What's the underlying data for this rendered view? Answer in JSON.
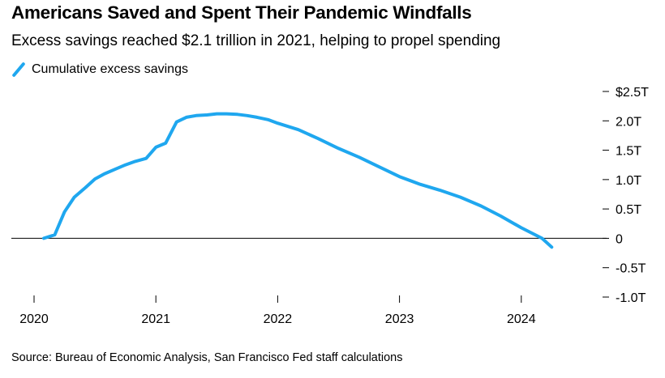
{
  "header": {
    "title": "Americans Saved and Spent Their Pandemic Windfalls",
    "subtitle": "Excess savings reached $2.1 trillion in 2021, helping to propel spending"
  },
  "legend": {
    "label": "Cumulative excess savings",
    "color": "#1fa7ef"
  },
  "footer": {
    "source": "Source: Bureau of Economic Analysis, San Francisco Fed staff calculations"
  },
  "chart_data": {
    "type": "line",
    "title": "Americans Saved and Spent Their Pandemic Windfalls",
    "subtitle": "Excess savings reached $2.1 trillion in 2021, helping to propel spending",
    "xlabel": "",
    "ylabel": "",
    "xlim": [
      2020.0,
      2024.5
    ],
    "ylim": [
      -1.0,
      2.5
    ],
    "x_ticks": [
      2020,
      2021,
      2022,
      2023,
      2024
    ],
    "x_tick_labels": [
      "2020",
      "2021",
      "2022",
      "2023",
      "2024"
    ],
    "y_ticks": [
      2.5,
      2.0,
      1.5,
      1.0,
      0.5,
      0,
      -0.5,
      -1.0
    ],
    "y_tick_labels": [
      "$2.5T",
      "2.0T",
      "1.5T",
      "1.0T",
      "0.5T",
      "0",
      "-0.5T",
      "-1.0T"
    ],
    "y_axis_side": "right",
    "zero_line": true,
    "grid": false,
    "legend_position": "top-left",
    "series": [
      {
        "name": "Cumulative excess savings",
        "color": "#1fa7ef",
        "x": [
          2020.08,
          2020.17,
          2020.25,
          2020.33,
          2020.42,
          2020.5,
          2020.58,
          2020.67,
          2020.75,
          2020.83,
          2020.92,
          2021.0,
          2021.08,
          2021.17,
          2021.25,
          2021.33,
          2021.42,
          2021.5,
          2021.58,
          2021.67,
          2021.75,
          2021.83,
          2021.92,
          2022.0,
          2022.17,
          2022.33,
          2022.5,
          2022.67,
          2022.83,
          2023.0,
          2023.17,
          2023.33,
          2023.5,
          2023.67,
          2023.83,
          2024.0,
          2024.17,
          2024.25
        ],
        "values": [
          0.0,
          0.06,
          0.45,
          0.7,
          0.86,
          1.01,
          1.1,
          1.18,
          1.25,
          1.31,
          1.36,
          1.55,
          1.62,
          1.98,
          2.06,
          2.09,
          2.1,
          2.12,
          2.12,
          2.11,
          2.09,
          2.06,
          2.02,
          1.96,
          1.85,
          1.7,
          1.53,
          1.38,
          1.22,
          1.05,
          0.92,
          0.82,
          0.7,
          0.55,
          0.38,
          0.18,
          0.0,
          -0.15
        ]
      }
    ]
  }
}
